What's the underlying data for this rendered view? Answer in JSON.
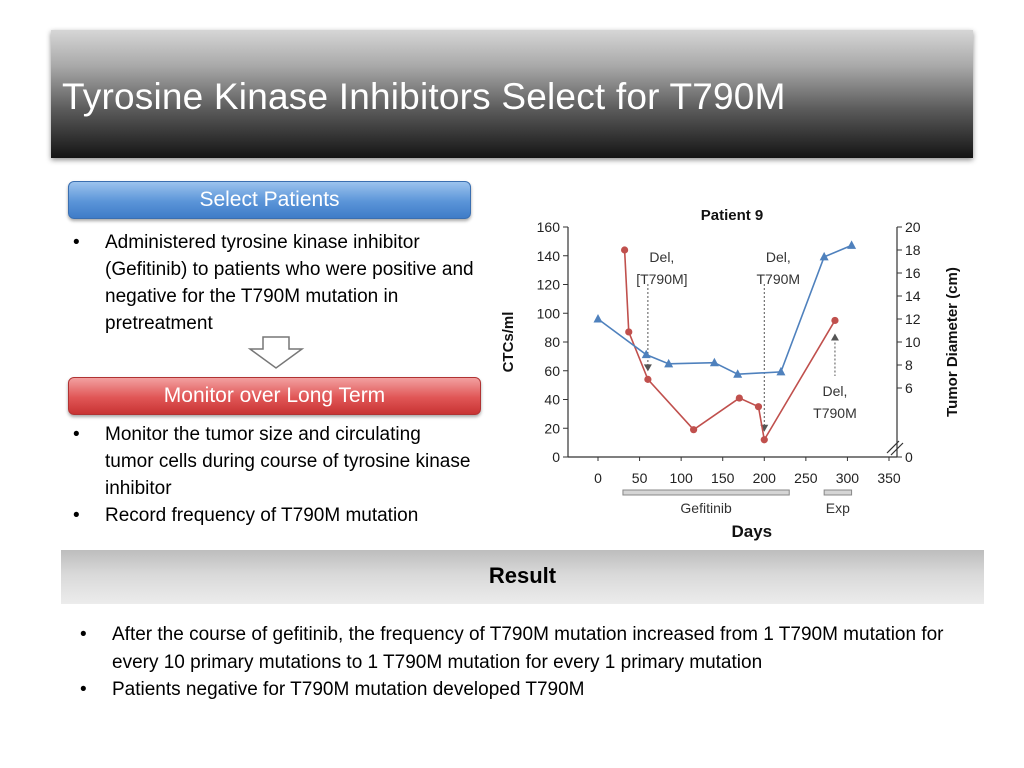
{
  "slide": {
    "title": "Tyrosine Kinase Inhibitors Select for T790M"
  },
  "select_patients": {
    "label": "Select Patients",
    "bullets": [
      "Administered tyrosine kinase inhibitor (Gefitinib) to patients who were positive and negative for the T790M mutation in pretreatment"
    ]
  },
  "monitor": {
    "label": "Monitor over Long Term",
    "bullets": [
      "Monitor the tumor size and circulating tumor cells during course of tyrosine kinase inhibitor",
      "Record frequency of T790M mutation"
    ]
  },
  "result": {
    "label": "Result",
    "bullets": [
      "After the course of gefitinib, the frequency of T790M mutation increased from 1 T790M mutation for every 10 primary mutations to 1 T790M mutation for every 1 primary mutation",
      "Patients negative for T790M mutation developed T790M"
    ]
  },
  "chart_data": {
    "type": "line",
    "title": "Patient 9",
    "xlabel": "Days",
    "ylabel": "CTCs/ml",
    "y2label": "Tumor Diameter (cm)",
    "xlim": [
      0,
      350
    ],
    "ylim": [
      0,
      160
    ],
    "y2lim": [
      0,
      20
    ],
    "xticks": [
      "0",
      "50",
      "100",
      "150",
      "200",
      "250",
      "300",
      "350"
    ],
    "yticks": [
      "0",
      "20",
      "40",
      "60",
      "80",
      "100",
      "120",
      "140",
      "160"
    ],
    "y2ticks": [
      "0",
      "6",
      "8",
      "10",
      "12",
      "14",
      "16",
      "18",
      "20"
    ],
    "series": [
      {
        "color": "#c0504d",
        "marker": "circle",
        "axis": "left",
        "x": [
          32,
          37,
          60,
          115,
          170,
          193,
          200,
          285
        ],
        "y": [
          144,
          87,
          54,
          19,
          41,
          35,
          12,
          95
        ]
      },
      {
        "color": "#4f81bd",
        "marker": "triangle",
        "axis": "right",
        "x": [
          0,
          58,
          85,
          140,
          168,
          220,
          272,
          305
        ],
        "y": [
          12,
          8.9,
          8.1,
          8.2,
          7.2,
          7.4,
          17.4,
          18.4
        ]
      }
    ],
    "annotations": [
      {
        "text_lines": [
          "Del,",
          "[T790M]"
        ],
        "x": 60
      },
      {
        "text_lines": [
          "Del,",
          "T790M"
        ],
        "x": 200
      },
      {
        "text_lines": [
          "Del,",
          "T790M"
        ],
        "x": 285
      }
    ],
    "treatments": [
      {
        "label": "Gefitinib",
        "start": 30,
        "end": 230
      },
      {
        "label": "Exp",
        "start": 272,
        "end": 305
      }
    ]
  }
}
